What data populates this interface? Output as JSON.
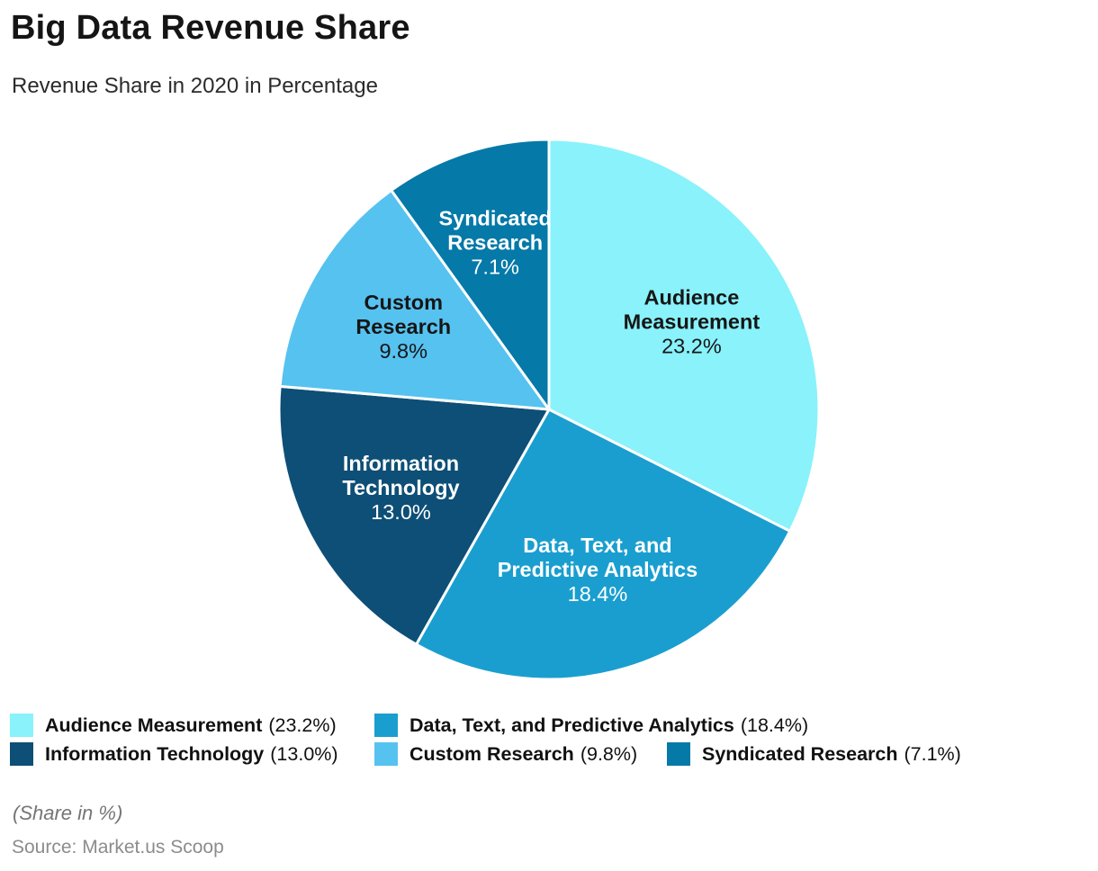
{
  "header": {
    "title": "Big Data Revenue Share",
    "subtitle": "Revenue Share in 2020 in Percentage"
  },
  "chart_data": {
    "type": "pie",
    "title": "Big Data Revenue Share",
    "subtitle": "Revenue Share in 2020 in Percentage",
    "unit": "percent",
    "start_angle_deg": 0,
    "direction": "clockwise",
    "slice_border_color": "#ffffff",
    "slices": [
      {
        "label": "Audience Measurement",
        "value": 23.2,
        "display": "23.2%",
        "color": "#89F2FB",
        "label_color": "#161616",
        "label_lines": [
          "Audience",
          "Measurement"
        ],
        "label_r": 0.62
      },
      {
        "label": "Data, Text, and Predictive Analytics",
        "value": 18.4,
        "display": "18.4%",
        "color": "#1A9ECF",
        "label_color": "#ffffff",
        "label_lines": [
          "Data, Text, and",
          "Predictive Analytics"
        ],
        "label_r": 0.62
      },
      {
        "label": "Information Technology",
        "value": 13.0,
        "display": "13.0%",
        "color": "#0D4F76",
        "label_color": "#ffffff",
        "label_lines": [
          "Information",
          "Technology"
        ],
        "label_r": 0.62
      },
      {
        "label": "Custom Research",
        "value": 9.8,
        "display": "9.8%",
        "color": "#56C2F0",
        "label_color": "#161616",
        "label_lines": [
          "Custom",
          "Research"
        ],
        "label_r": 0.62
      },
      {
        "label": "Syndicated Research",
        "value": 7.1,
        "display": "7.1%",
        "color": "#0579A8",
        "label_color": "#ffffff",
        "label_lines": [
          "Syndicated",
          "Research"
        ],
        "label_r": 0.65
      }
    ],
    "legend_position": "bottom"
  },
  "legend": {
    "items": [
      {
        "name": "Audience Measurement",
        "value_text": "(23.2%)",
        "color": "#89F2FB"
      },
      {
        "name": "Data, Text, and Predictive Analytics",
        "value_text": "(18.4%)",
        "color": "#1A9ECF"
      },
      {
        "name": "Information Technology",
        "value_text": "(13.0%)",
        "color": "#0D4F76"
      },
      {
        "name": "Custom Research",
        "value_text": "(9.8%)",
        "color": "#56C2F0"
      },
      {
        "name": "Syndicated Research",
        "value_text": "(7.1%)",
        "color": "#0579A8"
      }
    ]
  },
  "footer": {
    "note": "(Share in %)",
    "source": "Source: Market.us Scoop"
  }
}
